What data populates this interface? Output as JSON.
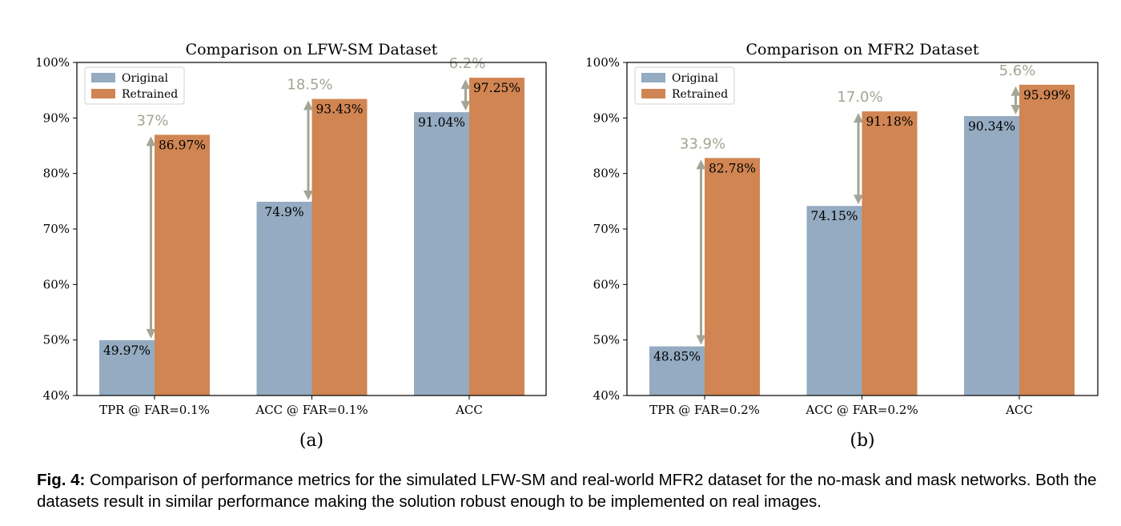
{
  "colors": {
    "original": "#94abc1",
    "retrained": "#d08552",
    "arrow": "#a4a594",
    "axis": "#000000"
  },
  "chart_data": [
    {
      "type": "bar",
      "title": "Comparison on LFW-SM Dataset",
      "panel_label": "(a)",
      "categories": [
        "TPR @ FAR=0.1%",
        "ACC @ FAR=0.1%",
        "ACC"
      ],
      "series": [
        {
          "name": "Original",
          "values": [
            49.97,
            74.9,
            91.04
          ],
          "labels": [
            "49.97%",
            "74.9%",
            "91.04%"
          ]
        },
        {
          "name": "Retrained",
          "values": [
            86.97,
            93.43,
            97.25
          ],
          "labels": [
            "86.97%",
            "93.43%",
            "97.25%"
          ]
        }
      ],
      "differences": [
        "37%",
        "18.5%",
        "6.2%"
      ],
      "ylim": [
        40,
        100
      ],
      "yticks": [
        "40%",
        "50%",
        "60%",
        "70%",
        "80%",
        "90%",
        "100%"
      ],
      "legend": "top-left",
      "grid": false
    },
    {
      "type": "bar",
      "title": "Comparison on MFR2 Dataset",
      "panel_label": "(b)",
      "categories": [
        "TPR @ FAR=0.2%",
        "ACC @ FAR=0.2%",
        "ACC"
      ],
      "series": [
        {
          "name": "Original",
          "values": [
            48.85,
            74.15,
            90.34
          ],
          "labels": [
            "48.85%",
            "74.15%",
            "90.34%"
          ]
        },
        {
          "name": "Retrained",
          "values": [
            82.78,
            91.18,
            95.99
          ],
          "labels": [
            "82.78%",
            "91.18%",
            "95.99%"
          ]
        }
      ],
      "differences": [
        "33.9%",
        "17.0%",
        "5.6%"
      ],
      "ylim": [
        40,
        100
      ],
      "yticks": [
        "40%",
        "50%",
        "60%",
        "70%",
        "80%",
        "90%",
        "100%"
      ],
      "legend": "top-left",
      "grid": false
    }
  ],
  "caption": {
    "label": "Fig. 4:",
    "text": " Comparison of performance metrics for the simulated LFW-SM and real-world MFR2 dataset for the no-mask and mask networks. Both the datasets result in similar performance making the solution robust enough to be implemented on real images."
  }
}
